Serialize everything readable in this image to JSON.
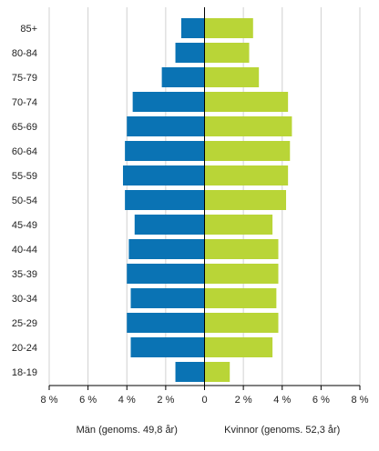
{
  "chart_data": {
    "type": "bar",
    "orientation": "horizontal-diverging",
    "categories": [
      "85+",
      "80-84",
      "75-79",
      "70-74",
      "65-69",
      "60-64",
      "55-59",
      "50-54",
      "45-49",
      "40-44",
      "35-39",
      "30-34",
      "25-29",
      "20-24",
      "18-19"
    ],
    "series": [
      {
        "name": "Män (genoms. 49,8 år)",
        "side": "left",
        "color": "#0a73b4",
        "values": [
          1.2,
          1.5,
          2.2,
          3.7,
          4.0,
          4.1,
          4.2,
          4.1,
          3.6,
          3.9,
          4.0,
          3.8,
          4.0,
          3.8,
          1.5
        ]
      },
      {
        "name": "Kvinnor (genoms. 52,3 år)",
        "side": "right",
        "color": "#b9d537",
        "values": [
          2.5,
          2.3,
          2.8,
          4.3,
          4.5,
          4.4,
          4.3,
          4.2,
          3.5,
          3.8,
          3.8,
          3.7,
          3.8,
          3.5,
          1.3
        ]
      }
    ],
    "xlim": [
      -8,
      8
    ],
    "xticks": [
      -8,
      -6,
      -4,
      -2,
      0,
      2,
      4,
      6,
      8
    ],
    "xtick_labels": [
      "8 %",
      "6 %",
      "4 %",
      "2 %",
      "0",
      "2 %",
      "4 %",
      "6 %",
      "8 %"
    ],
    "grid": true,
    "title": "",
    "xlabel": "",
    "ylabel": ""
  }
}
